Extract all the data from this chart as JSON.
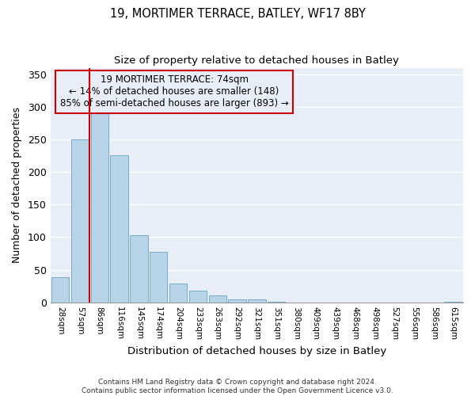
{
  "title": "19, MORTIMER TERRACE, BATLEY, WF17 8BY",
  "subtitle": "Size of property relative to detached houses in Batley",
  "xlabel": "Distribution of detached houses by size in Batley",
  "ylabel": "Number of detached properties",
  "bar_labels": [
    "28sqm",
    "57sqm",
    "86sqm",
    "116sqm",
    "145sqm",
    "174sqm",
    "204sqm",
    "233sqm",
    "263sqm",
    "292sqm",
    "321sqm",
    "351sqm",
    "380sqm",
    "409sqm",
    "439sqm",
    "468sqm",
    "498sqm",
    "527sqm",
    "556sqm",
    "586sqm",
    "615sqm"
  ],
  "bar_values": [
    39,
    250,
    291,
    226,
    103,
    78,
    29,
    18,
    11,
    5,
    4,
    1,
    0,
    0,
    0,
    0,
    0,
    0,
    0,
    0,
    1
  ],
  "bar_color": "#b8d4e8",
  "bar_edgecolor": "#7aaac8",
  "vline_x_idx": 2,
  "vline_color": "#cc0000",
  "annotation_title": "19 MORTIMER TERRACE: 74sqm",
  "annotation_line1": "← 14% of detached houses are smaller (148)",
  "annotation_line2": "85% of semi-detached houses are larger (893) →",
  "annotation_box_edgecolor": "#cc0000",
  "ylim": [
    0,
    360
  ],
  "yticks": [
    0,
    50,
    100,
    150,
    200,
    250,
    300,
    350
  ],
  "footer1": "Contains HM Land Registry data © Crown copyright and database right 2024.",
  "footer2": "Contains public sector information licensed under the Open Government Licence v3.0.",
  "figure_bg": "#ffffff",
  "axes_bg": "#e8eef8",
  "grid_color": "#ffffff"
}
